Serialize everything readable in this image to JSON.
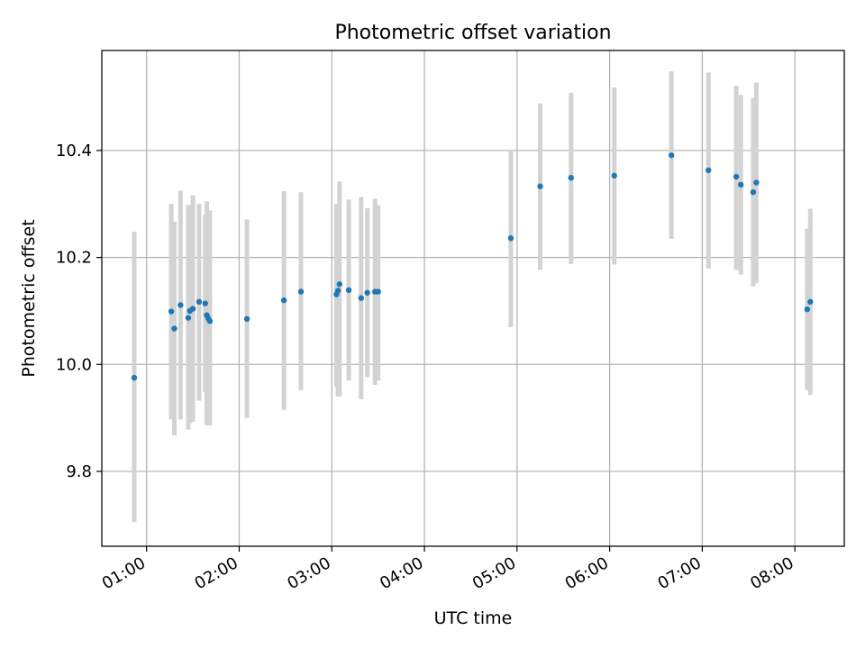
{
  "chart_data": {
    "type": "scatter",
    "title": "Photometric offset variation",
    "xlabel": "UTC time",
    "ylabel": "Photometric offset",
    "xaxis_kind": "time",
    "xlim": [
      "00:31",
      "08:32"
    ],
    "ylim": [
      9.66,
      10.587
    ],
    "grid": true,
    "xticks": [
      "01:00",
      "02:00",
      "03:00",
      "04:00",
      "05:00",
      "06:00",
      "07:00",
      "08:00"
    ],
    "yticks": [
      9.8,
      10.0,
      10.2,
      10.4
    ],
    "ytick_labels": [
      "9.8",
      "10.0",
      "10.2",
      "10.4"
    ],
    "colors": {
      "point": "#1f77b4",
      "errorbar": "#d3d3d3",
      "grid": "#b0b0b0"
    },
    "points": [
      {
        "x": "00:52",
        "y": 9.975,
        "low": 9.705,
        "high": 10.248
      },
      {
        "x": "01:16",
        "y": 10.099,
        "low": 9.897,
        "high": 10.3
      },
      {
        "x": "01:18",
        "y": 10.067,
        "low": 9.867,
        "high": 10.267
      },
      {
        "x": "01:22",
        "y": 10.111,
        "low": 9.897,
        "high": 10.325
      },
      {
        "x": "01:27",
        "y": 10.087,
        "low": 9.878,
        "high": 10.298
      },
      {
        "x": "01:28",
        "y": 10.1,
        "low": 9.89,
        "high": 10.298
      },
      {
        "x": "01:30",
        "y": 10.104,
        "low": 9.893,
        "high": 10.316
      },
      {
        "x": "01:34",
        "y": 10.117,
        "low": 9.932,
        "high": 10.3
      },
      {
        "x": "01:38",
        "y": 10.114,
        "low": 9.948,
        "high": 10.28
      },
      {
        "x": "01:39",
        "y": 10.092,
        "low": 9.886,
        "high": 10.305
      },
      {
        "x": "01:40",
        "y": 10.086,
        "low": 9.886,
        "high": 10.288
      },
      {
        "x": "01:41",
        "y": 10.081,
        "low": 9.886,
        "high": 10.288
      },
      {
        "x": "02:05",
        "y": 10.085,
        "low": 9.9,
        "high": 10.271
      },
      {
        "x": "02:29",
        "y": 10.12,
        "low": 9.915,
        "high": 10.324
      },
      {
        "x": "02:40",
        "y": 10.136,
        "low": 9.952,
        "high": 10.322
      },
      {
        "x": "03:03",
        "y": 10.131,
        "low": 9.958,
        "high": 10.3
      },
      {
        "x": "03:04",
        "y": 10.138,
        "low": 9.94,
        "high": 10.3
      },
      {
        "x": "03:05",
        "y": 10.15,
        "low": 9.94,
        "high": 10.342
      },
      {
        "x": "03:11",
        "y": 10.139,
        "low": 9.97,
        "high": 10.308
      },
      {
        "x": "03:19",
        "y": 10.124,
        "low": 9.935,
        "high": 10.313
      },
      {
        "x": "03:23",
        "y": 10.134,
        "low": 9.976,
        "high": 10.292
      },
      {
        "x": "03:28",
        "y": 10.136,
        "low": 9.962,
        "high": 10.31
      },
      {
        "x": "03:30",
        "y": 10.136,
        "low": 9.97,
        "high": 10.298
      },
      {
        "x": "04:56",
        "y": 10.236,
        "low": 10.07,
        "high": 10.4
      },
      {
        "x": "05:15",
        "y": 10.333,
        "low": 10.177,
        "high": 10.488
      },
      {
        "x": "05:35",
        "y": 10.349,
        "low": 10.188,
        "high": 10.508
      },
      {
        "x": "06:03",
        "y": 10.353,
        "low": 10.187,
        "high": 10.518
      },
      {
        "x": "06:40",
        "y": 10.391,
        "low": 10.235,
        "high": 10.548
      },
      {
        "x": "07:04",
        "y": 10.363,
        "low": 10.179,
        "high": 10.546
      },
      {
        "x": "07:22",
        "y": 10.351,
        "low": 10.177,
        "high": 10.521
      },
      {
        "x": "07:25",
        "y": 10.336,
        "low": 10.168,
        "high": 10.504
      },
      {
        "x": "07:33",
        "y": 10.322,
        "low": 10.146,
        "high": 10.498
      },
      {
        "x": "07:35",
        "y": 10.34,
        "low": 10.152,
        "high": 10.527
      },
      {
        "x": "08:08",
        "y": 10.103,
        "low": 9.952,
        "high": 10.254
      },
      {
        "x": "08:10",
        "y": 10.117,
        "low": 9.943,
        "high": 10.291
      }
    ]
  }
}
